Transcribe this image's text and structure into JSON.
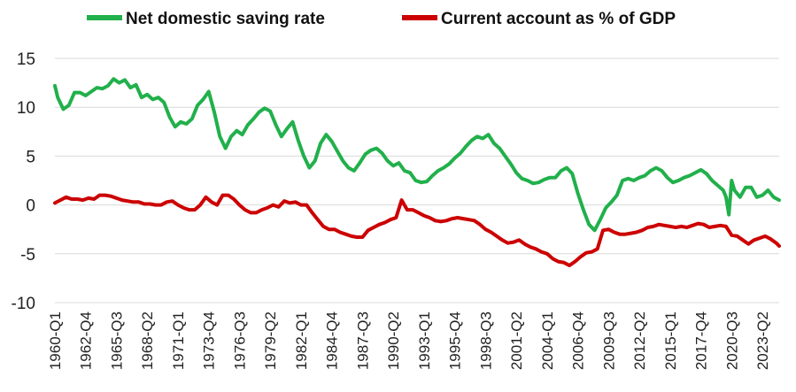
{
  "chart_data": {
    "type": "line",
    "title": "",
    "xlabel": "",
    "ylabel": "",
    "ylim": [
      -10,
      15
    ],
    "yticks": [
      15,
      10,
      5,
      0,
      -5,
      -10
    ],
    "grid": true,
    "legend_position": "top",
    "x_start": "1960-Q1",
    "x_end": "2024-Q4",
    "x_ticks": [
      "1960-Q1",
      "1962-Q4",
      "1965-Q3",
      "1968-Q2",
      "1971-Q1",
      "1973-Q4",
      "1976-Q3",
      "1979-Q2",
      "1982-Q1",
      "1984-Q4",
      "1987-Q3",
      "1990-Q2",
      "1993-Q1",
      "1995-Q4",
      "1998-Q3",
      "2001-Q2",
      "2004-Q1",
      "2006-Q4",
      "2009-Q3",
      "2012-Q2",
      "2015-Q1",
      "2017-Q4",
      "2020-Q3",
      "2023-Q2"
    ],
    "series": [
      {
        "name": "Net domestic saving rate",
        "color": "#21b04b",
        "points": [
          [
            "1960-Q1",
            12.2
          ],
          [
            "1960-Q2",
            11.0
          ],
          [
            "1960-Q4",
            9.8
          ],
          [
            "1961-Q2",
            10.2
          ],
          [
            "1961-Q4",
            11.5
          ],
          [
            "1962-Q2",
            11.5
          ],
          [
            "1962-Q4",
            11.2
          ],
          [
            "1963-Q2",
            11.6
          ],
          [
            "1963-Q4",
            12.0
          ],
          [
            "1964-Q2",
            11.9
          ],
          [
            "1964-Q4",
            12.2
          ],
          [
            "1965-Q2",
            12.9
          ],
          [
            "1965-Q4",
            12.5
          ],
          [
            "1966-Q2",
            12.8
          ],
          [
            "1966-Q4",
            12.0
          ],
          [
            "1967-Q2",
            12.3
          ],
          [
            "1967-Q4",
            11.0
          ],
          [
            "1968-Q2",
            11.3
          ],
          [
            "1968-Q4",
            10.8
          ],
          [
            "1969-Q2",
            11.0
          ],
          [
            "1969-Q4",
            10.5
          ],
          [
            "1970-Q2",
            9.0
          ],
          [
            "1970-Q4",
            8.0
          ],
          [
            "1971-Q2",
            8.5
          ],
          [
            "1971-Q4",
            8.3
          ],
          [
            "1972-Q2",
            8.8
          ],
          [
            "1972-Q4",
            10.2
          ],
          [
            "1973-Q2",
            10.8
          ],
          [
            "1973-Q4",
            11.6
          ],
          [
            "1974-Q2",
            9.5
          ],
          [
            "1974-Q4",
            7.0
          ],
          [
            "1975-Q2",
            5.8
          ],
          [
            "1975-Q4",
            7.0
          ],
          [
            "1976-Q2",
            7.6
          ],
          [
            "1976-Q4",
            7.2
          ],
          [
            "1977-Q2",
            8.2
          ],
          [
            "1977-Q4",
            8.8
          ],
          [
            "1978-Q2",
            9.5
          ],
          [
            "1978-Q4",
            9.9
          ],
          [
            "1979-Q2",
            9.6
          ],
          [
            "1979-Q4",
            8.2
          ],
          [
            "1980-Q2",
            7.0
          ],
          [
            "1980-Q4",
            7.8
          ],
          [
            "1981-Q2",
            8.5
          ],
          [
            "1981-Q4",
            6.6
          ],
          [
            "1982-Q2",
            5.0
          ],
          [
            "1982-Q4",
            3.8
          ],
          [
            "1983-Q2",
            4.5
          ],
          [
            "1983-Q4",
            6.3
          ],
          [
            "1984-Q2",
            7.2
          ],
          [
            "1984-Q4",
            6.5
          ],
          [
            "1985-Q2",
            5.5
          ],
          [
            "1985-Q4",
            4.5
          ],
          [
            "1986-Q2",
            3.8
          ],
          [
            "1986-Q4",
            3.5
          ],
          [
            "1987-Q2",
            4.3
          ],
          [
            "1987-Q4",
            5.2
          ],
          [
            "1988-Q2",
            5.6
          ],
          [
            "1988-Q4",
            5.8
          ],
          [
            "1989-Q2",
            5.3
          ],
          [
            "1989-Q4",
            4.5
          ],
          [
            "1990-Q2",
            4.0
          ],
          [
            "1990-Q4",
            4.3
          ],
          [
            "1991-Q2",
            3.5
          ],
          [
            "1991-Q4",
            3.3
          ],
          [
            "1992-Q2",
            2.5
          ],
          [
            "1992-Q4",
            2.3
          ],
          [
            "1993-Q2",
            2.4
          ],
          [
            "1993-Q4",
            3.0
          ],
          [
            "1994-Q2",
            3.5
          ],
          [
            "1994-Q4",
            3.8
          ],
          [
            "1995-Q2",
            4.2
          ],
          [
            "1995-Q4",
            4.8
          ],
          [
            "1996-Q2",
            5.3
          ],
          [
            "1996-Q4",
            6.0
          ],
          [
            "1997-Q2",
            6.6
          ],
          [
            "1997-Q4",
            7.0
          ],
          [
            "1998-Q2",
            6.8
          ],
          [
            "1998-Q4",
            7.2
          ],
          [
            "1999-Q2",
            6.3
          ],
          [
            "1999-Q4",
            5.8
          ],
          [
            "2000-Q2",
            5.0
          ],
          [
            "2000-Q4",
            4.2
          ],
          [
            "2001-Q2",
            3.3
          ],
          [
            "2001-Q4",
            2.7
          ],
          [
            "2002-Q2",
            2.5
          ],
          [
            "2002-Q4",
            2.2
          ],
          [
            "2003-Q2",
            2.3
          ],
          [
            "2003-Q4",
            2.6
          ],
          [
            "2004-Q2",
            2.8
          ],
          [
            "2004-Q4",
            2.8
          ],
          [
            "2005-Q2",
            3.5
          ],
          [
            "2005-Q4",
            3.8
          ],
          [
            "2006-Q2",
            3.2
          ],
          [
            "2006-Q4",
            1.2
          ],
          [
            "2007-Q2",
            -0.5
          ],
          [
            "2007-Q4",
            -2.0
          ],
          [
            "2008-Q2",
            -2.6
          ],
          [
            "2008-Q4",
            -1.5
          ],
          [
            "2009-Q2",
            -0.3
          ],
          [
            "2009-Q4",
            0.3
          ],
          [
            "2010-Q2",
            1.0
          ],
          [
            "2010-Q4",
            2.5
          ],
          [
            "2011-Q2",
            2.7
          ],
          [
            "2011-Q4",
            2.5
          ],
          [
            "2012-Q2",
            2.8
          ],
          [
            "2012-Q4",
            3.0
          ],
          [
            "2013-Q2",
            3.5
          ],
          [
            "2013-Q4",
            3.8
          ],
          [
            "2014-Q2",
            3.5
          ],
          [
            "2014-Q4",
            2.8
          ],
          [
            "2015-Q2",
            2.3
          ],
          [
            "2015-Q4",
            2.5
          ],
          [
            "2016-Q2",
            2.8
          ],
          [
            "2016-Q4",
            3.0
          ],
          [
            "2017-Q2",
            3.3
          ],
          [
            "2017-Q4",
            3.6
          ],
          [
            "2018-Q2",
            3.2
          ],
          [
            "2018-Q4",
            2.5
          ],
          [
            "2019-Q2",
            2.0
          ],
          [
            "2019-Q4",
            1.5
          ],
          [
            "2020-Q1",
            0.8
          ],
          [
            "2020-Q2",
            -1.0
          ],
          [
            "2020-Q3",
            2.5
          ],
          [
            "2020-Q4",
            1.5
          ],
          [
            "2021-Q2",
            0.8
          ],
          [
            "2021-Q4",
            1.8
          ],
          [
            "2022-Q2",
            1.8
          ],
          [
            "2022-Q4",
            0.8
          ],
          [
            "2023-Q2",
            1.0
          ],
          [
            "2023-Q4",
            1.5
          ],
          [
            "2024-Q2",
            0.8
          ],
          [
            "2024-Q4",
            0.5
          ]
        ]
      },
      {
        "name": "Current account as % of GDP",
        "color": "#cc0000",
        "points": [
          [
            "1960-Q1",
            0.2
          ],
          [
            "1960-Q3",
            0.5
          ],
          [
            "1961-Q1",
            0.8
          ],
          [
            "1961-Q3",
            0.6
          ],
          [
            "1962-Q1",
            0.6
          ],
          [
            "1962-Q3",
            0.5
          ],
          [
            "1963-Q1",
            0.7
          ],
          [
            "1963-Q3",
            0.6
          ],
          [
            "1964-Q1",
            1.0
          ],
          [
            "1964-Q3",
            1.0
          ],
          [
            "1965-Q1",
            0.9
          ],
          [
            "1965-Q3",
            0.7
          ],
          [
            "1966-Q1",
            0.5
          ],
          [
            "1966-Q3",
            0.4
          ],
          [
            "1967-Q1",
            0.3
          ],
          [
            "1967-Q3",
            0.3
          ],
          [
            "1968-Q1",
            0.1
          ],
          [
            "1968-Q3",
            0.1
          ],
          [
            "1969-Q1",
            0.0
          ],
          [
            "1969-Q3",
            0.0
          ],
          [
            "1970-Q1",
            0.3
          ],
          [
            "1970-Q3",
            0.4
          ],
          [
            "1971-Q1",
            0.0
          ],
          [
            "1971-Q3",
            -0.3
          ],
          [
            "1972-Q1",
            -0.5
          ],
          [
            "1972-Q3",
            -0.5
          ],
          [
            "1973-Q1",
            0.0
          ],
          [
            "1973-Q3",
            0.8
          ],
          [
            "1974-Q1",
            0.3
          ],
          [
            "1974-Q3",
            0.0
          ],
          [
            "1975-Q1",
            1.0
          ],
          [
            "1975-Q3",
            1.0
          ],
          [
            "1976-Q1",
            0.6
          ],
          [
            "1976-Q3",
            0.0
          ],
          [
            "1977-Q1",
            -0.5
          ],
          [
            "1977-Q3",
            -0.8
          ],
          [
            "1978-Q1",
            -0.8
          ],
          [
            "1978-Q3",
            -0.5
          ],
          [
            "1979-Q1",
            -0.3
          ],
          [
            "1979-Q3",
            0.0
          ],
          [
            "1980-Q1",
            -0.2
          ],
          [
            "1980-Q3",
            0.4
          ],
          [
            "1981-Q1",
            0.2
          ],
          [
            "1981-Q3",
            0.3
          ],
          [
            "1982-Q1",
            0.0
          ],
          [
            "1982-Q3",
            0.0
          ],
          [
            "1983-Q1",
            -0.8
          ],
          [
            "1983-Q3",
            -1.5
          ],
          [
            "1984-Q1",
            -2.2
          ],
          [
            "1984-Q3",
            -2.5
          ],
          [
            "1985-Q1",
            -2.5
          ],
          [
            "1985-Q3",
            -2.8
          ],
          [
            "1986-Q1",
            -3.0
          ],
          [
            "1986-Q3",
            -3.2
          ],
          [
            "1987-Q1",
            -3.3
          ],
          [
            "1987-Q3",
            -3.3
          ],
          [
            "1988-Q1",
            -2.6
          ],
          [
            "1988-Q3",
            -2.3
          ],
          [
            "1989-Q1",
            -2.0
          ],
          [
            "1989-Q3",
            -1.8
          ],
          [
            "1990-Q1",
            -1.5
          ],
          [
            "1990-Q3",
            -1.3
          ],
          [
            "1991-Q1",
            0.5
          ],
          [
            "1991-Q3",
            -0.5
          ],
          [
            "1992-Q1",
            -0.5
          ],
          [
            "1992-Q3",
            -0.8
          ],
          [
            "1993-Q1",
            -1.1
          ],
          [
            "1993-Q3",
            -1.3
          ],
          [
            "1994-Q1",
            -1.6
          ],
          [
            "1994-Q3",
            -1.7
          ],
          [
            "1995-Q1",
            -1.6
          ],
          [
            "1995-Q3",
            -1.4
          ],
          [
            "1996-Q1",
            -1.3
          ],
          [
            "1996-Q3",
            -1.4
          ],
          [
            "1997-Q1",
            -1.5
          ],
          [
            "1997-Q3",
            -1.6
          ],
          [
            "1998-Q1",
            -2.0
          ],
          [
            "1998-Q3",
            -2.5
          ],
          [
            "1999-Q1",
            -2.8
          ],
          [
            "1999-Q3",
            -3.2
          ],
          [
            "2000-Q1",
            -3.6
          ],
          [
            "2000-Q3",
            -3.9
          ],
          [
            "2001-Q1",
            -3.8
          ],
          [
            "2001-Q3",
            -3.6
          ],
          [
            "2002-Q1",
            -4.0
          ],
          [
            "2002-Q3",
            -4.3
          ],
          [
            "2003-Q1",
            -4.5
          ],
          [
            "2003-Q3",
            -4.8
          ],
          [
            "2004-Q1",
            -5.0
          ],
          [
            "2004-Q3",
            -5.5
          ],
          [
            "2005-Q1",
            -5.8
          ],
          [
            "2005-Q3",
            -5.9
          ],
          [
            "2006-Q1",
            -6.2
          ],
          [
            "2006-Q3",
            -5.8
          ],
          [
            "2007-Q1",
            -5.3
          ],
          [
            "2007-Q3",
            -4.9
          ],
          [
            "2008-Q1",
            -4.8
          ],
          [
            "2008-Q3",
            -4.5
          ],
          [
            "2009-Q1",
            -2.6
          ],
          [
            "2009-Q3",
            -2.5
          ],
          [
            "2010-Q1",
            -2.8
          ],
          [
            "2010-Q3",
            -3.0
          ],
          [
            "2011-Q1",
            -3.0
          ],
          [
            "2011-Q3",
            -2.9
          ],
          [
            "2012-Q1",
            -2.8
          ],
          [
            "2012-Q3",
            -2.6
          ],
          [
            "2013-Q1",
            -2.3
          ],
          [
            "2013-Q3",
            -2.2
          ],
          [
            "2014-Q1",
            -2.0
          ],
          [
            "2014-Q3",
            -2.1
          ],
          [
            "2015-Q1",
            -2.2
          ],
          [
            "2015-Q3",
            -2.3
          ],
          [
            "2016-Q1",
            -2.2
          ],
          [
            "2016-Q3",
            -2.3
          ],
          [
            "2017-Q1",
            -2.1
          ],
          [
            "2017-Q3",
            -1.9
          ],
          [
            "2018-Q1",
            -2.0
          ],
          [
            "2018-Q3",
            -2.3
          ],
          [
            "2019-Q1",
            -2.2
          ],
          [
            "2019-Q3",
            -2.1
          ],
          [
            "2020-Q1",
            -2.2
          ],
          [
            "2020-Q3",
            -3.1
          ],
          [
            "2021-Q1",
            -3.2
          ],
          [
            "2021-Q3",
            -3.6
          ],
          [
            "2022-Q1",
            -4.0
          ],
          [
            "2022-Q3",
            -3.6
          ],
          [
            "2023-Q1",
            -3.4
          ],
          [
            "2023-Q3",
            -3.2
          ],
          [
            "2024-Q1",
            -3.5
          ],
          [
            "2024-Q3",
            -3.9
          ],
          [
            "2024-Q4",
            -4.2
          ]
        ]
      }
    ]
  }
}
